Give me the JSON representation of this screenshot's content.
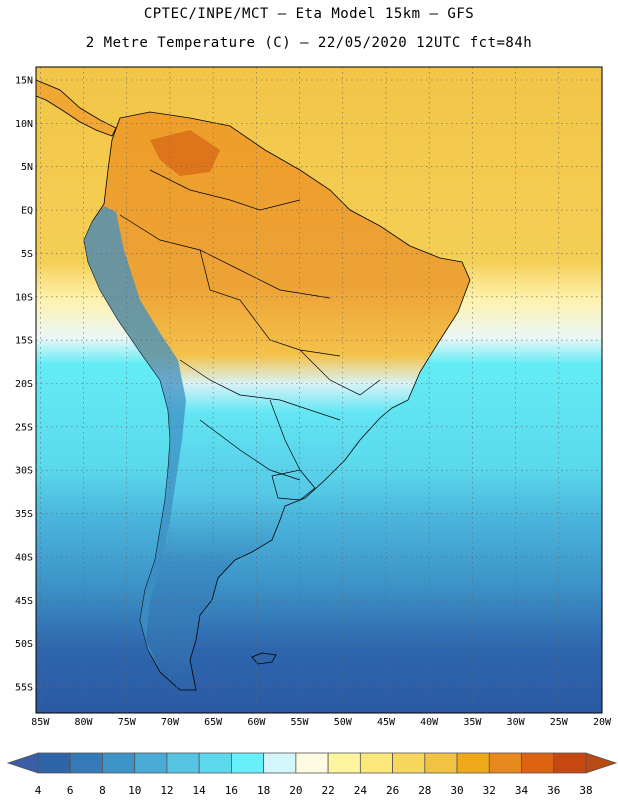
{
  "header": {
    "line1": "CPTEC/INPE/MCT –  Eta Model 15km – GFS",
    "line2": "2 Metre Temperature (C) – 22/05/2020 12UTC fct=84h"
  },
  "map": {
    "lat_labels": [
      "15N",
      "10N",
      "5N",
      "EQ",
      "5S",
      "10S",
      "15S",
      "20S",
      "25S",
      "30S",
      "35S",
      "40S",
      "45S",
      "50S",
      "55S"
    ],
    "lat_values": [
      15,
      10,
      5,
      0,
      -5,
      -10,
      -15,
      -20,
      -25,
      -30,
      -35,
      -40,
      -45,
      -50,
      -55
    ],
    "lon_labels": [
      "85W",
      "80W",
      "75W",
      "70W",
      "65W",
      "60W",
      "55W",
      "50W",
      "45W",
      "40W",
      "35W",
      "30W",
      "25W",
      "20W"
    ],
    "lon_values": [
      -85,
      -80,
      -75,
      -70,
      -65,
      -60,
      -55,
      -50,
      -45,
      -40,
      -35,
      -30,
      -25,
      -20
    ],
    "extent": {
      "lon_min": -85.5,
      "lon_max": -20,
      "lat_min": -58,
      "lat_max": 16.5
    }
  },
  "colorbar": {
    "labels": [
      "4",
      "6",
      "8",
      "10",
      "12",
      "14",
      "16",
      "18",
      "20",
      "22",
      "24",
      "26",
      "28",
      "30",
      "32",
      "34",
      "36",
      "38"
    ],
    "colors": [
      "#2e64a8",
      "#347ab8",
      "#3d94c8",
      "#48acd7",
      "#54c4e2",
      "#5dd9ee",
      "#66f0fb",
      "#d2f6fb",
      "#fffbe0",
      "#fff59e",
      "#fce878",
      "#f8d75c",
      "#f2c244",
      "#efa81a",
      "#e8891e",
      "#dd6212",
      "#c74710"
    ],
    "low_color": "#3b5ea8",
    "high_color": "#b84a14"
  }
}
